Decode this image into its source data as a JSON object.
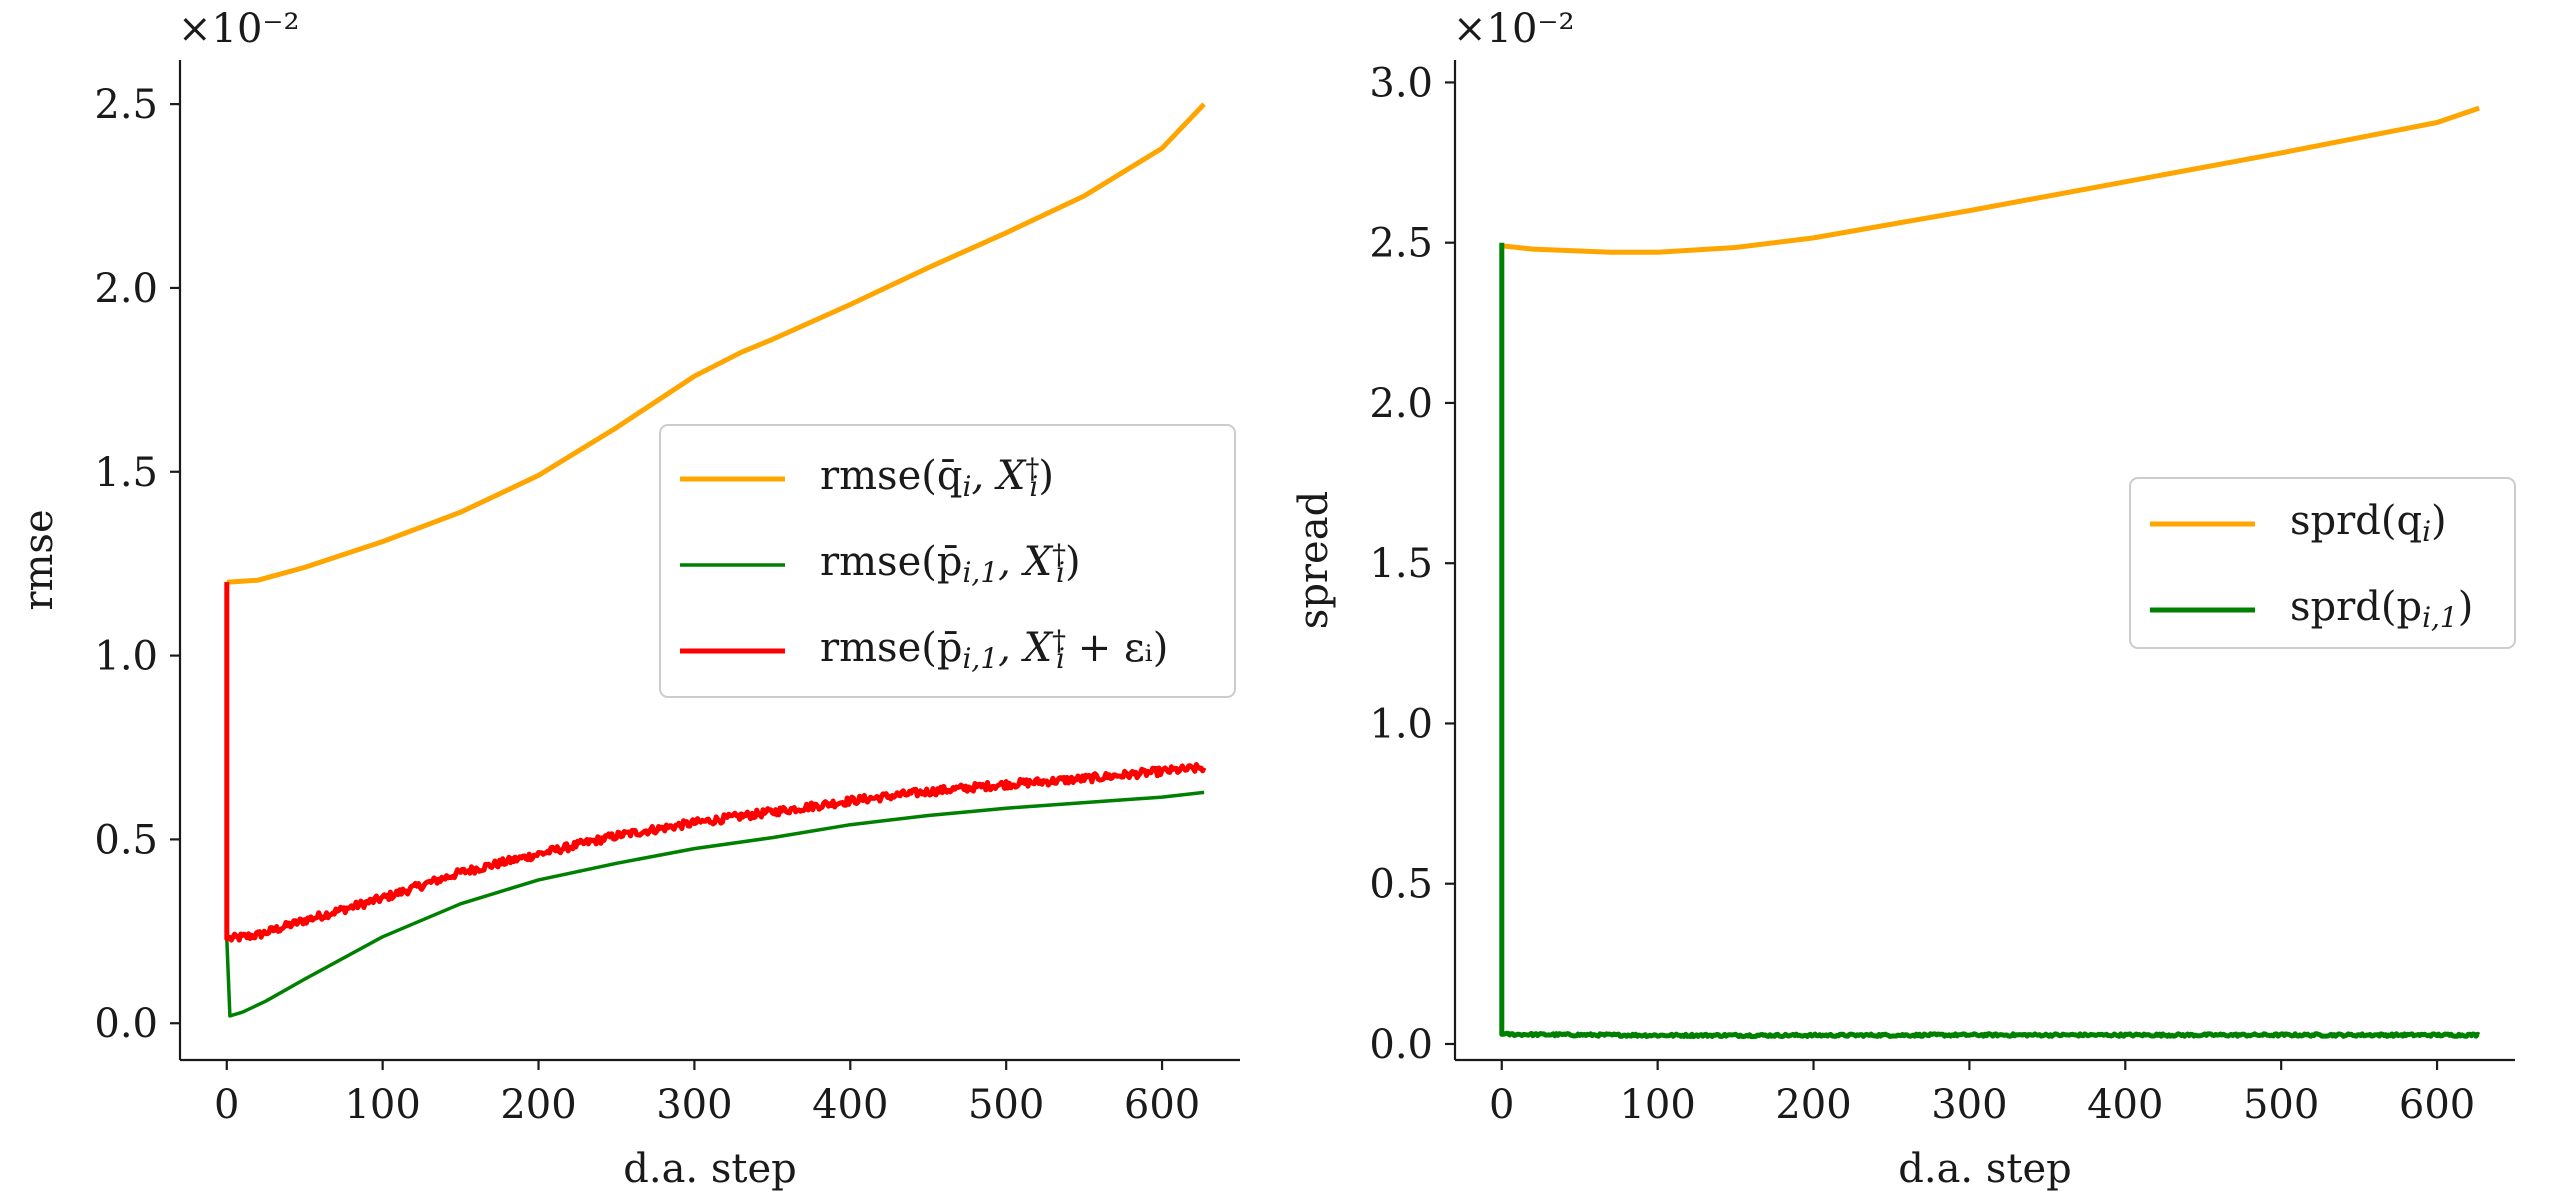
{
  "chart_data": [
    {
      "type": "line",
      "xlabel": "d.a. step",
      "ylabel": "rmse",
      "multiplier": "×10⁻²",
      "xlim": [
        -30,
        650
      ],
      "ylim": [
        -0.1,
        2.62
      ],
      "xticks": [
        0,
        100,
        200,
        300,
        400,
        500,
        600
      ],
      "xtick_labels": [
        "0",
        "100",
        "200",
        "300",
        "400",
        "500",
        "600"
      ],
      "yticks": [
        0.0,
        0.5,
        1.0,
        1.5,
        2.0,
        2.5
      ],
      "ytick_labels": [
        "0.0",
        "0.5",
        "1.0",
        "1.5",
        "2.0",
        "2.5"
      ],
      "legend_position": "center-right",
      "series": [
        {
          "name": "rmse(q̄ᵢ, Xᵢ†)",
          "legend": {
            "base": "rmse(q̄",
            "s1": "i",
            "mid": ", X",
            "sup": "†",
            "sub": "i",
            "tail": ")"
          },
          "color": "#FFA500",
          "width": 5,
          "noise": 0,
          "x": [
            0,
            1,
            20,
            50,
            100,
            150,
            200,
            250,
            300,
            330,
            350,
            400,
            450,
            500,
            550,
            600,
            627
          ],
          "y": [
            1.2,
            1.2,
            1.205,
            1.24,
            1.31,
            1.39,
            1.49,
            1.62,
            1.76,
            1.825,
            1.86,
            1.955,
            2.055,
            2.15,
            2.25,
            2.38,
            2.5
          ]
        },
        {
          "name": "rmse(p̄ᵢ,₁, Xᵢ†)",
          "legend": {
            "base": "rmse(p̄",
            "s1": "i,1",
            "mid": ", X",
            "sup": "†",
            "sub": "i",
            "tail": ")"
          },
          "color": "#008000",
          "width": 3.5,
          "noise": 0,
          "x": [
            0,
            0,
            2,
            10,
            25,
            50,
            100,
            150,
            200,
            250,
            300,
            350,
            400,
            450,
            500,
            550,
            600,
            627
          ],
          "y": [
            1.2,
            0.23,
            0.02,
            0.03,
            0.06,
            0.12,
            0.235,
            0.325,
            0.39,
            0.435,
            0.475,
            0.505,
            0.54,
            0.565,
            0.585,
            0.6,
            0.615,
            0.628
          ]
        },
        {
          "name": "rmse(p̄ᵢ,₁, Xᵢ† + εᵢ)",
          "legend": {
            "base": "rmse(p̄",
            "s1": "i,1",
            "mid": ", X",
            "sup": "†",
            "sub": "i",
            "tail": " + εᵢ)"
          },
          "color": "#FF0000",
          "width": 5,
          "noise": 0.011,
          "x": [
            0,
            0,
            2,
            20,
            50,
            100,
            150,
            200,
            250,
            300,
            350,
            400,
            450,
            500,
            550,
            600,
            627
          ],
          "y": [
            1.2,
            0.23,
            0.23,
            0.24,
            0.28,
            0.34,
            0.41,
            0.46,
            0.51,
            0.545,
            0.575,
            0.605,
            0.63,
            0.65,
            0.665,
            0.685,
            0.695
          ]
        }
      ]
    },
    {
      "type": "line",
      "xlabel": "d.a. step",
      "ylabel": "spread",
      "multiplier": "×10⁻²",
      "xlim": [
        -30,
        650
      ],
      "ylim": [
        -0.05,
        3.07
      ],
      "xticks": [
        0,
        100,
        200,
        300,
        400,
        500,
        600
      ],
      "xtick_labels": [
        "0",
        "100",
        "200",
        "300",
        "400",
        "500",
        "600"
      ],
      "yticks": [
        0.0,
        0.5,
        1.0,
        1.5,
        2.0,
        2.5,
        3.0
      ],
      "ytick_labels": [
        "0.0",
        "0.5",
        "1.0",
        "1.5",
        "2.0",
        "2.5",
        "3.0"
      ],
      "legend_position": "center-right",
      "series": [
        {
          "name": "sprd(qᵢ)",
          "legend": {
            "base": "sprd(q",
            "s1": "i",
            "mid": "",
            "sup": "",
            "sub": "",
            "tail": ")"
          },
          "color": "#FFA500",
          "width": 5,
          "noise": 0,
          "x": [
            0,
            20,
            70,
            100,
            150,
            200,
            300,
            400,
            500,
            600,
            627
          ],
          "y": [
            2.49,
            2.48,
            2.47,
            2.47,
            2.485,
            2.515,
            2.6,
            2.69,
            2.78,
            2.875,
            2.92
          ]
        },
        {
          "name": "sprd(pᵢ,₁)",
          "legend": {
            "base": "sprd(p",
            "s1": "i,1",
            "mid": "",
            "sup": "",
            "sub": "",
            "tail": ")"
          },
          "color": "#008000",
          "width": 5,
          "noise": 0.004,
          "x": [
            0,
            0,
            2,
            100,
            200,
            300,
            400,
            500,
            600,
            627
          ],
          "y": [
            2.5,
            0.03,
            0.03,
            0.027,
            0.027,
            0.028,
            0.028,
            0.028,
            0.028,
            0.028
          ]
        }
      ]
    }
  ]
}
